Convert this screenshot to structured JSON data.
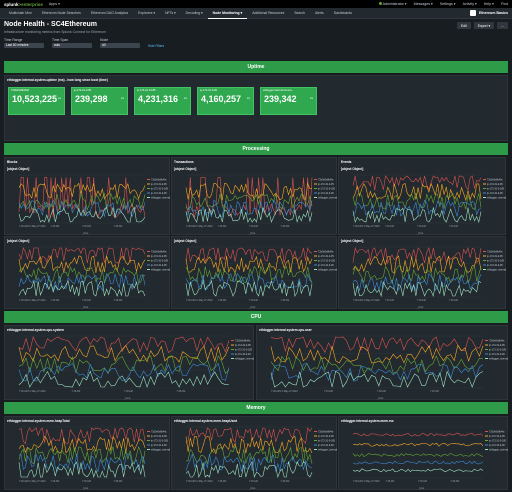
{
  "topbar": {
    "logo_a": "splunk",
    "logo_b": ">enterprise",
    "apps": "Apps ▾",
    "admin": "Administrator ▾",
    "messages": "Messages ▾",
    "settings": "Settings ▾",
    "activity": "Activity ▾",
    "help": "Help ▾",
    "find": "Find"
  },
  "nav": [
    "Multichain Mon",
    "Ethereum Node Searches",
    "Ethereum DAO Analytics",
    "Explorers ▾",
    "NFTs ▾",
    "Decoding ▾",
    "Node Monitoring ▾",
    "Additional Resources",
    "Search",
    "Alerts",
    "Dashboards"
  ],
  "app_name": "Ethereum Basics",
  "header": {
    "title": "Node Health - SC4Ethereum",
    "subtitle": "Infrastructure monitoring metrics from Splunk Connect for Ethereum",
    "edit": "Edit",
    "export": "Export ▾",
    "more": "..."
  },
  "filters": [
    {
      "label": "Time Range",
      "value": "Last 60 minutes"
    },
    {
      "label": "Time Span",
      "value": "auto"
    },
    {
      "label": "Node",
      "value": "All"
    }
  ],
  "hide_filters": "Hide Filters",
  "bands": {
    "uptime": "Uptime",
    "processing": "Processing",
    "cpu": "CPU",
    "memory": "Memory"
  },
  "uptime": {
    "title": "ethlogger.internal.system.uptime (ms) - how long since boot (time)",
    "tiles": [
      {
        "label": "72d0e5e8b4fa0",
        "value": "10,523,225",
        "unit": "ms"
      },
      {
        "label": "ip-172-31-0-95",
        "value": "239,298",
        "unit": "ms"
      },
      {
        "label": "ip-172-31-0-185",
        "value": "4,231,316",
        "unit": "ms"
      },
      {
        "label": "ip-172-31-0-90",
        "value": "4,160,257",
        "unit": "ms"
      },
      {
        "label": "ethlogger.internal.Gonna...",
        "value": "239,342",
        "unit": "ms"
      }
    ]
  },
  "processing": {
    "col_titles": [
      "Blocks",
      "Transactions",
      "Events"
    ],
    "charts": [
      {
        "title": "ethlogger.internal.blockWatcher.blocksProcessed"
      },
      {
        "title": "ethlogger.internal.blockWatcher.transactionsProcessed"
      },
      {
        "title": "ethlogger.internal.blockWatcher.transactionLogEventsProcessed"
      },
      {
        "title": "ethlogger.internal.blockWatcher.blockProcessTime.avg"
      },
      {
        "title": "ethlogger.internal.blockWatcher.txProcessTime.avg"
      },
      {
        "title": "ethlogger.internal.blockWatcher.eventProcessTime.avg"
      }
    ]
  },
  "cpu": {
    "charts": [
      {
        "title": "ethlogger.internal.system.cpu.system"
      },
      {
        "title": "ethlogger.internal.system.cpu.user"
      }
    ]
  },
  "memory": {
    "charts": [
      {
        "title": "ethlogger.internal.system.mem.heapTotal"
      },
      {
        "title": "ethlogger.internal.system.mem.heapUsed"
      },
      {
        "title": "ethlogger.internal.system.mem.rss"
      }
    ]
  },
  "legend": [
    "72d0e5e8b4fa",
    "ip-172-31-0-95",
    "ip-172-31-0-185",
    "ip-172-31-0-90",
    "ethlogger_internal"
  ],
  "x_labels": [
    "7:00 AM Fri May 27 2022",
    "7:15 AM",
    "7:30 AM",
    "7:45 AM"
  ],
  "x_axis": "_time",
  "colors": {
    "band": "#2e9b48",
    "s1": "#d9534f",
    "s2": "#f7a823",
    "s3": "#65a637",
    "s4": "#3b8bd3",
    "s5": "#9fe2bf"
  }
}
